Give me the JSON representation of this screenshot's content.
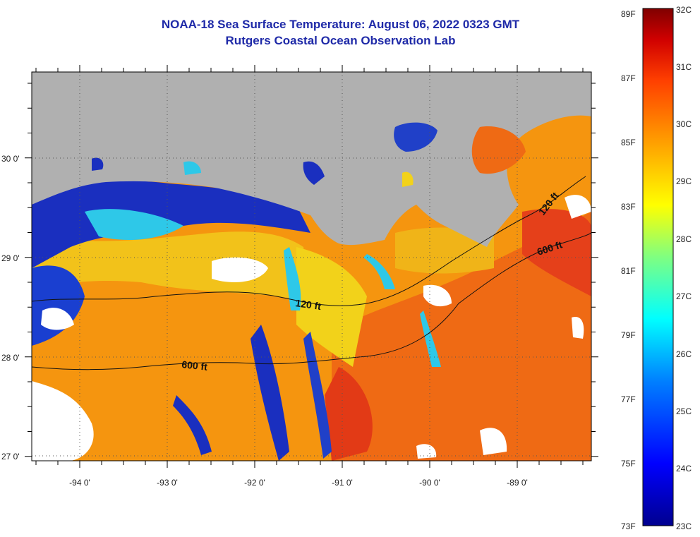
{
  "title": "NOAA-18 Sea Surface Temperature:  August 06, 2022 0323 GMT",
  "subtitle": "Rutgers Coastal Ocean Observation Lab",
  "lat_labels": [
    "30 0'",
    "29 0'",
    "28 0'",
    "27 0'"
  ],
  "lon_labels": [
    "-94 0'",
    "-93 0'",
    "-92 0'",
    "-91 0'",
    "-90 0'",
    "-89 0'"
  ],
  "isobath_labels": [
    "120 ft",
    "600 ft",
    "120 ft",
    "600 ft"
  ],
  "colorbar": {
    "fahrenheit": [
      "89F",
      "87F",
      "85F",
      "83F",
      "81F",
      "79F",
      "77F",
      "75F",
      "73F"
    ],
    "celsius": [
      "32C",
      "31C",
      "30C",
      "29C",
      "28C",
      "27C",
      "26C",
      "25C",
      "24C",
      "23C"
    ],
    "colors": [
      "#00008f",
      "#0000ff",
      "#0080ff",
      "#00ffff",
      "#80ff80",
      "#ffff00",
      "#ffa000",
      "#ff4000",
      "#d00000",
      "#800000"
    ]
  },
  "map_colors": {
    "land": "#b0b0b0",
    "cloud": "#ffffff",
    "cold": "#1a2fbf",
    "cyan": "#2ec8e8",
    "yellow": "#f2d21a",
    "orange": "#f5950f",
    "hot": "#e8401a"
  }
}
